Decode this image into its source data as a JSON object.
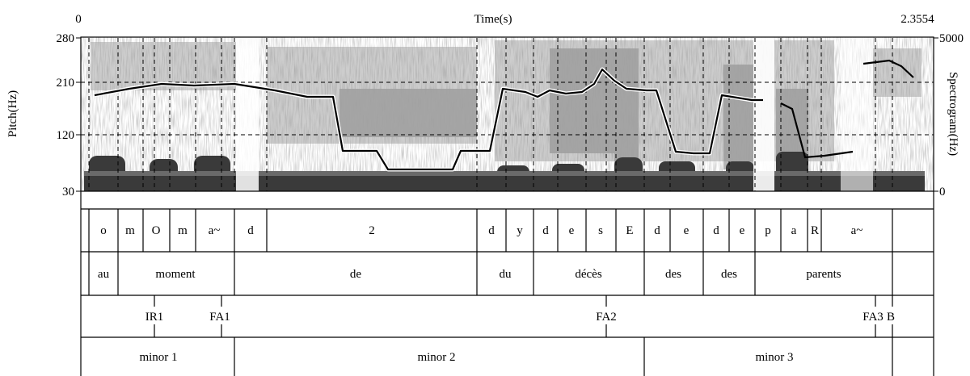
{
  "axes": {
    "time_label": "Time(s)",
    "time_start": "0",
    "time_end": "2.3554",
    "pitch_label": "Pitch(Hz)",
    "pitch_ticks": [
      "280",
      "210",
      "120",
      "30"
    ],
    "spectrogram_label": "Spectrogram(Hz)",
    "spectrogram_ticks": [
      "5000",
      "0"
    ]
  },
  "tiers": {
    "phones": [
      "o",
      "m",
      "O",
      "m",
      "a~",
      "d",
      "2",
      "d",
      "y",
      "d",
      "e",
      "s",
      "E",
      "d",
      "e",
      "d",
      "e",
      "p",
      "a",
      "R",
      "a~"
    ],
    "words": [
      "au",
      "moment",
      "de",
      "du",
      "décès",
      "des",
      "des",
      "parents"
    ],
    "tones": [
      "IR1",
      "FA1",
      "FA2",
      "FA3",
      "B"
    ],
    "phrases": [
      "minor 1",
      "minor 2",
      "minor 3"
    ]
  }
}
